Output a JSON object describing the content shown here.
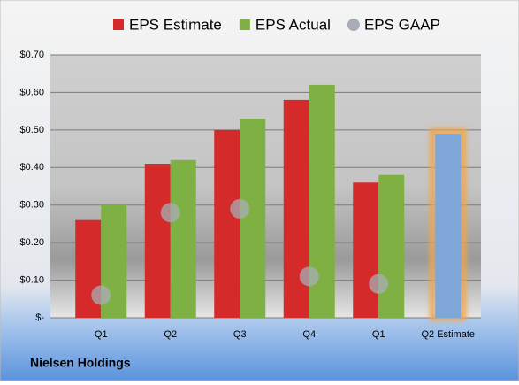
{
  "chart_data": {
    "type": "bar",
    "title": "Nielsen Holdings",
    "categories": [
      "Q1",
      "Q2",
      "Q3",
      "Q4",
      "Q1",
      "Q2 Estimate"
    ],
    "series": [
      {
        "name": "EPS Estimate",
        "color": "#d42a2a",
        "values": [
          0.26,
          0.41,
          0.5,
          0.58,
          0.36,
          0.49
        ],
        "highlight": {
          "index": 5,
          "color": "#7ea6d8",
          "glow": "#f2a54a"
        }
      },
      {
        "name": "EPS Actual",
        "color": "#7fb043",
        "values": [
          0.3,
          0.42,
          0.53,
          0.62,
          0.38,
          null
        ]
      },
      {
        "name": "EPS GAAP",
        "color": "#a8adb5",
        "marker": "circle",
        "values": [
          0.06,
          0.28,
          0.29,
          0.11,
          0.09,
          null
        ]
      }
    ],
    "ylim": [
      0,
      0.7
    ],
    "yticks": [
      {
        "value": 0,
        "label": "$-"
      },
      {
        "value": 0.1,
        "label": "$0.10"
      },
      {
        "value": 0.2,
        "label": "$0.20"
      },
      {
        "value": 0.3,
        "label": "$0.30"
      },
      {
        "value": 0.4,
        "label": "$0.40"
      },
      {
        "value": 0.5,
        "label": "$0.50"
      },
      {
        "value": 0.6,
        "label": "$0.60"
      },
      {
        "value": 0.7,
        "label": "$0.70"
      }
    ],
    "grid": true,
    "legend": "top"
  }
}
